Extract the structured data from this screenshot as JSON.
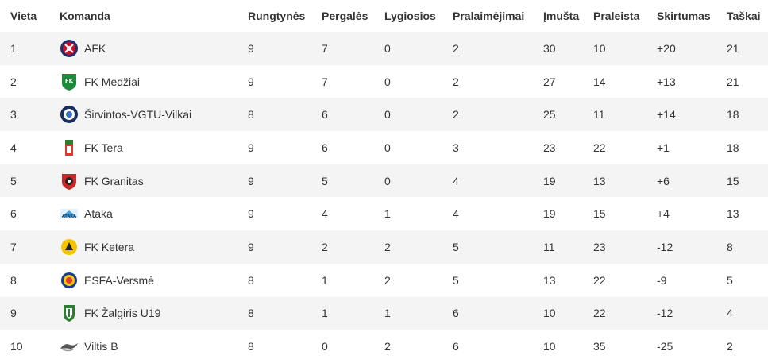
{
  "columns": [
    "Vieta",
    "Komanda",
    "Rungtynės",
    "Pergalės",
    "Lygiosios",
    "Pralaimėjimai",
    "Įmušta",
    "Praleista",
    "Skirtumas",
    "Taškai"
  ],
  "rows": [
    {
      "pos": "1",
      "team": "AFK",
      "badge": "afk-crest-icon",
      "played": "9",
      "won": "7",
      "drawn": "0",
      "lost": "2",
      "gf": "30",
      "ga": "10",
      "gd": "+20",
      "pts": "21"
    },
    {
      "pos": "2",
      "team": "FK Medžiai",
      "badge": "medziai-crest-icon",
      "played": "9",
      "won": "7",
      "drawn": "0",
      "lost": "2",
      "gf": "27",
      "ga": "14",
      "gd": "+13",
      "pts": "21"
    },
    {
      "pos": "3",
      "team": "Širvintos-VGTU-Vilkai",
      "badge": "vilkai-crest-icon",
      "played": "8",
      "won": "6",
      "drawn": "0",
      "lost": "2",
      "gf": "25",
      "ga": "11",
      "gd": "+14",
      "pts": "18"
    },
    {
      "pos": "4",
      "team": "FK Tera",
      "badge": "tera-crest-icon",
      "played": "9",
      "won": "6",
      "drawn": "0",
      "lost": "3",
      "gf": "23",
      "ga": "22",
      "gd": "+1",
      "pts": "18"
    },
    {
      "pos": "5",
      "team": "FK Granitas",
      "badge": "granitas-crest-icon",
      "played": "9",
      "won": "5",
      "drawn": "0",
      "lost": "4",
      "gf": "19",
      "ga": "13",
      "gd": "+6",
      "pts": "15"
    },
    {
      "pos": "6",
      "team": "Ataka",
      "badge": "ataka-crest-icon",
      "played": "9",
      "won": "4",
      "drawn": "1",
      "lost": "4",
      "gf": "19",
      "ga": "15",
      "gd": "+4",
      "pts": "13"
    },
    {
      "pos": "7",
      "team": "FK Ketera",
      "badge": "ketera-crest-icon",
      "played": "9",
      "won": "2",
      "drawn": "2",
      "lost": "5",
      "gf": "11",
      "ga": "23",
      "gd": "-12",
      "pts": "8"
    },
    {
      "pos": "8",
      "team": "ESFA-Versmė",
      "badge": "esfa-versme-crest-icon",
      "played": "8",
      "won": "1",
      "drawn": "2",
      "lost": "5",
      "gf": "13",
      "ga": "22",
      "gd": "-9",
      "pts": "5"
    },
    {
      "pos": "9",
      "team": "FK Žalgiris U19",
      "badge": "zalgiris-crest-icon",
      "played": "8",
      "won": "1",
      "drawn": "1",
      "lost": "6",
      "gf": "10",
      "ga": "22",
      "gd": "-12",
      "pts": "4"
    },
    {
      "pos": "10",
      "team": "Viltis B",
      "badge": "viltis-crest-icon",
      "played": "8",
      "won": "0",
      "drawn": "2",
      "lost": "6",
      "gf": "10",
      "ga": "35",
      "gd": "-25",
      "pts": "2"
    }
  ],
  "colors": {
    "row_stripe": "#f4f4f4",
    "text": "#333333"
  }
}
